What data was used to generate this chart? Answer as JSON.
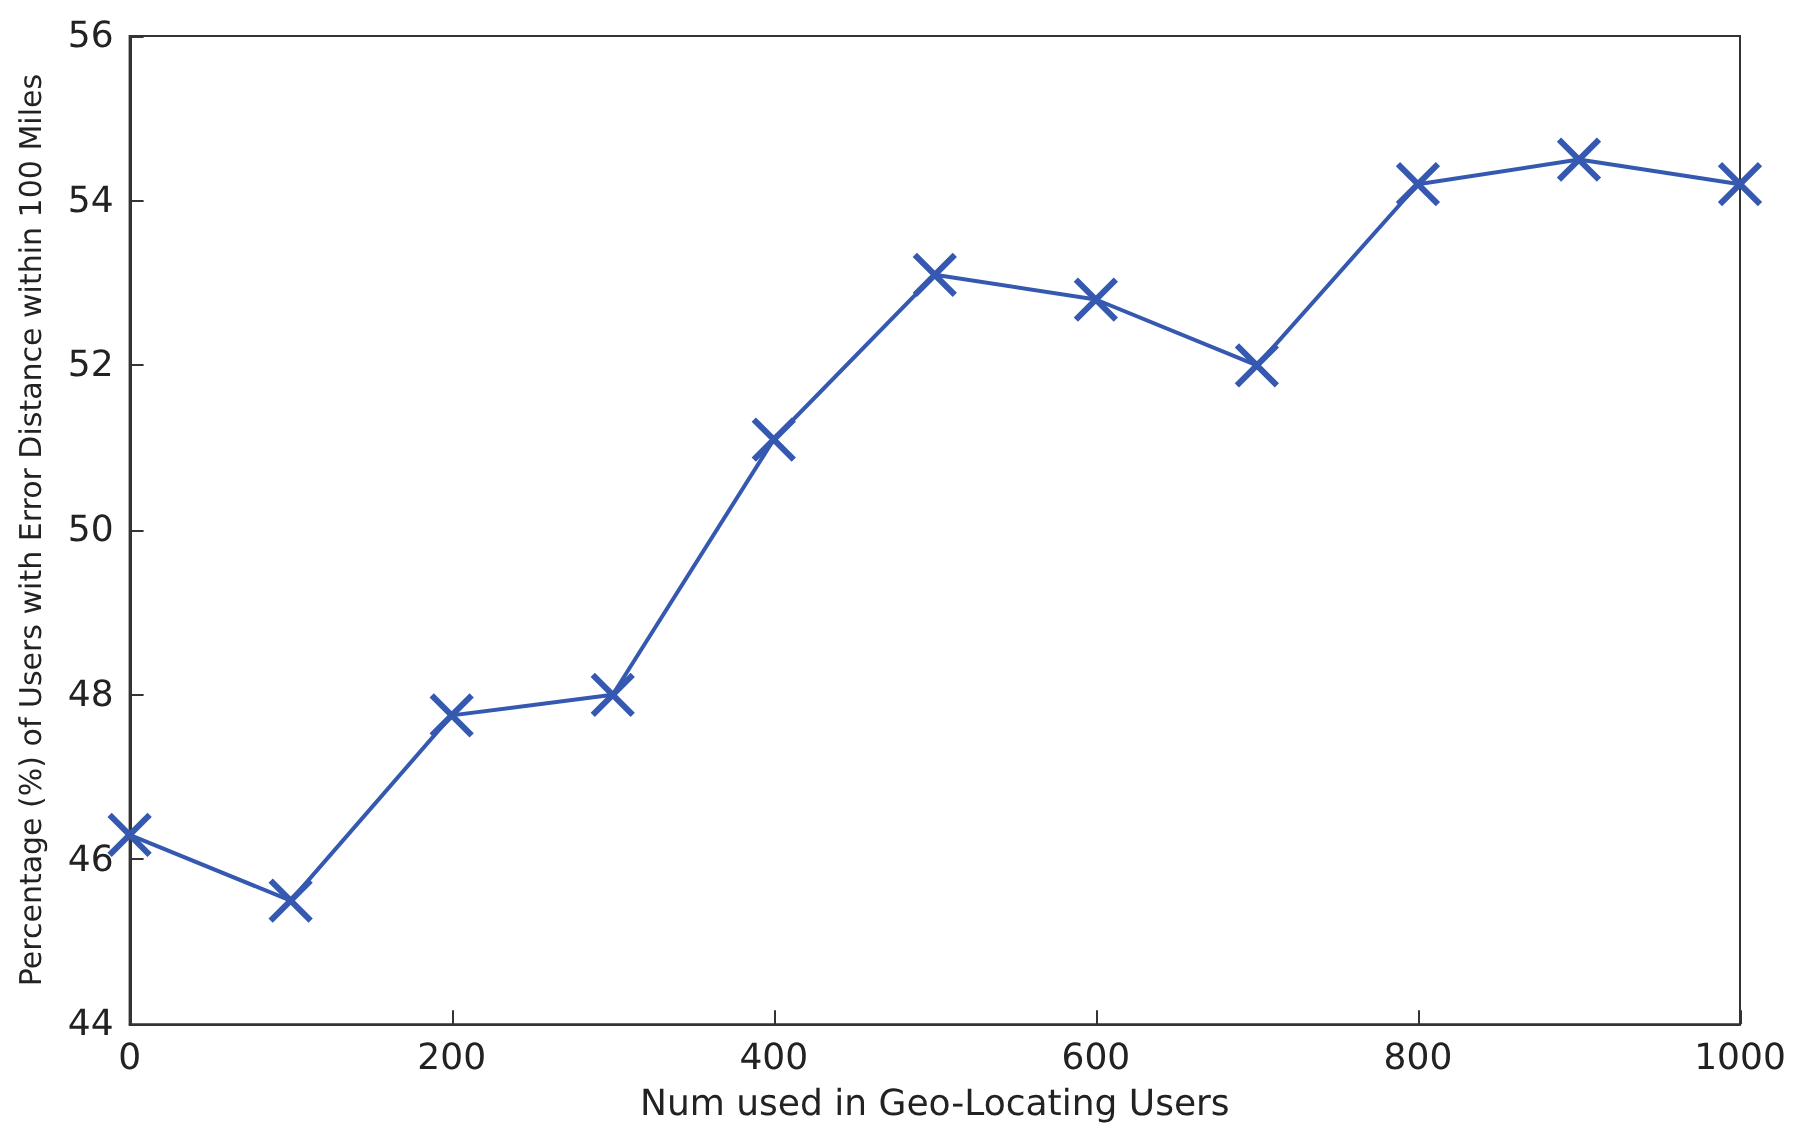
{
  "chart_data": {
    "type": "line",
    "xlabel": "Num used in Geo-Locating Users",
    "ylabel": "Percentage (%) of Users with Error Distance within 100 Miles",
    "x": [
      0,
      100,
      200,
      300,
      400,
      500,
      600,
      700,
      800,
      900,
      1000
    ],
    "series": [
      {
        "color": "#3558b0",
        "values": [
          46.3,
          45.5,
          47.75,
          48.0,
          51.1,
          53.1,
          52.8,
          52.0,
          54.2,
          54.5,
          54.2
        ]
      }
    ],
    "xlim": [
      0,
      1000
    ],
    "xticks": [
      0,
      200,
      400,
      600,
      800,
      1000
    ],
    "ylim": [
      44,
      56
    ],
    "yticks": [
      44,
      46,
      48,
      50,
      52,
      54,
      56
    ],
    "grid": false,
    "marker": "cross",
    "line_style": "solid"
  }
}
